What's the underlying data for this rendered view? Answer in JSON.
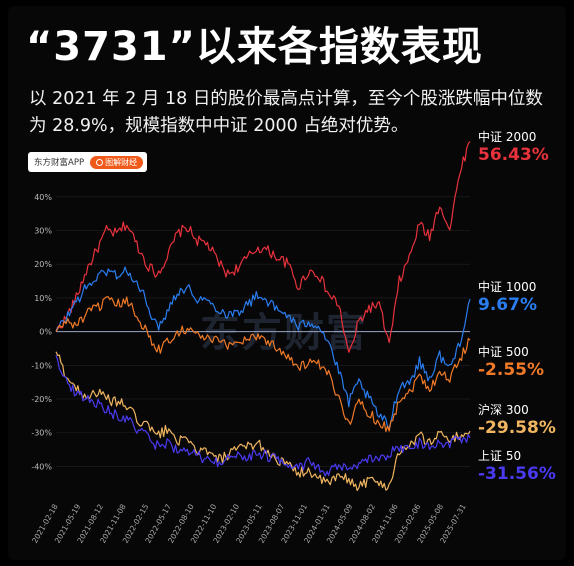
{
  "header": {
    "title": "“3731”以来各指数表现",
    "subtitle": "以 2021 年 2 月 18 日的股价最高点计算，至今个股涨跌幅中位数为 28.9%，规模指数中中证 2000 占绝对优势。"
  },
  "badge": {
    "app_name": "东方财富APP",
    "pill_label": "图解财经",
    "icon": "search-icon"
  },
  "watermark": "东方财富",
  "chart_data": {
    "type": "line",
    "title": "",
    "xlabel": "",
    "ylabel": "",
    "ylim": [
      -50,
      45
    ],
    "yticks": [
      -40,
      -30,
      -20,
      -10,
      0,
      10,
      20,
      30,
      40
    ],
    "ytick_labels": [
      "-40%",
      "-30%",
      "-20%",
      "-10%",
      "0%",
      "10%",
      "20%",
      "30%",
      "40%"
    ],
    "x_ticks": [
      "2021-02-18",
      "2021-05-19",
      "2021-08-12",
      "2021-11-08",
      "2022-02-15",
      "2022-05-17",
      "2022-08-10",
      "2022-11-10",
      "2023-02-10",
      "2023-05-11",
      "2023-08-07",
      "2023-11-01",
      "2024-01-31",
      "2024-05-09",
      "2024-08-02",
      "2024-11-06",
      "2025-02-06",
      "2025-05-08",
      "2025-07-31"
    ],
    "grid": true,
    "series": [
      {
        "name": "中证 2000",
        "final_label": "56.43%",
        "color": "#e8323c",
        "values": [
          0,
          4,
          10,
          18,
          24,
          30,
          29,
          32,
          26,
          20,
          17,
          22,
          29,
          31,
          27,
          26,
          21,
          17,
          19,
          22,
          25,
          24,
          22,
          20,
          13,
          18,
          17,
          11,
          8,
          -7,
          3,
          7,
          8,
          -4,
          15,
          22,
          32,
          28,
          38,
          30,
          48,
          56.43
        ]
      },
      {
        "name": "中证 1000",
        "final_label": "9.67%",
        "color": "#2a7df0",
        "values": [
          0,
          4,
          9,
          13,
          16,
          18,
          17,
          18,
          14,
          9,
          1,
          6,
          12,
          13,
          10,
          9,
          7,
          5,
          6,
          8,
          11,
          9,
          6,
          5,
          1,
          3,
          2,
          -3,
          -12,
          -21,
          -15,
          -20,
          -25,
          -28,
          -16,
          -15,
          -9,
          -14,
          -7,
          -11,
          -3,
          9.67
        ]
      },
      {
        "name": "中证 500",
        "final_label": "-2.55%",
        "color": "#f07a28",
        "values": [
          0,
          3,
          2,
          5,
          7,
          9,
          8,
          9,
          5,
          0,
          -6,
          -3,
          0,
          1,
          -1,
          -2,
          -3,
          -4,
          -3,
          -2,
          -1,
          -3,
          -5,
          -7,
          -11,
          -9,
          -10,
          -13,
          -20,
          -27,
          -21,
          -24,
          -27,
          -29,
          -20,
          -18,
          -13,
          -17,
          -12,
          -14,
          -8,
          -2.55
        ]
      },
      {
        "name": "沪深 300",
        "final_label": "-29.58%",
        "color": "#f0b560",
        "values": [
          -6,
          -13,
          -17,
          -19,
          -18,
          -20,
          -21,
          -22,
          -26,
          -28,
          -31,
          -29,
          -32,
          -33,
          -35,
          -36,
          -38,
          -37,
          -35,
          -34,
          -33,
          -36,
          -38,
          -40,
          -42,
          -41,
          -44,
          -45,
          -43,
          -44,
          -46,
          -44,
          -45,
          -46,
          -35,
          -34,
          -31,
          -33,
          -30,
          -32,
          -31,
          -29.58
        ]
      },
      {
        "name": "上证 50",
        "final_label": "-31.56%",
        "color": "#4a3af0",
        "values": [
          -7,
          -15,
          -18,
          -20,
          -21,
          -23,
          -25,
          -26,
          -29,
          -31,
          -34,
          -33,
          -35,
          -36,
          -37,
          -38,
          -39,
          -38,
          -37,
          -37,
          -36,
          -37,
          -38,
          -39,
          -40,
          -39,
          -41,
          -42,
          -40,
          -41,
          -40,
          -38,
          -38,
          -36,
          -35,
          -34,
          -33,
          -34,
          -33,
          -33,
          -32,
          -31.56
        ]
      }
    ]
  }
}
